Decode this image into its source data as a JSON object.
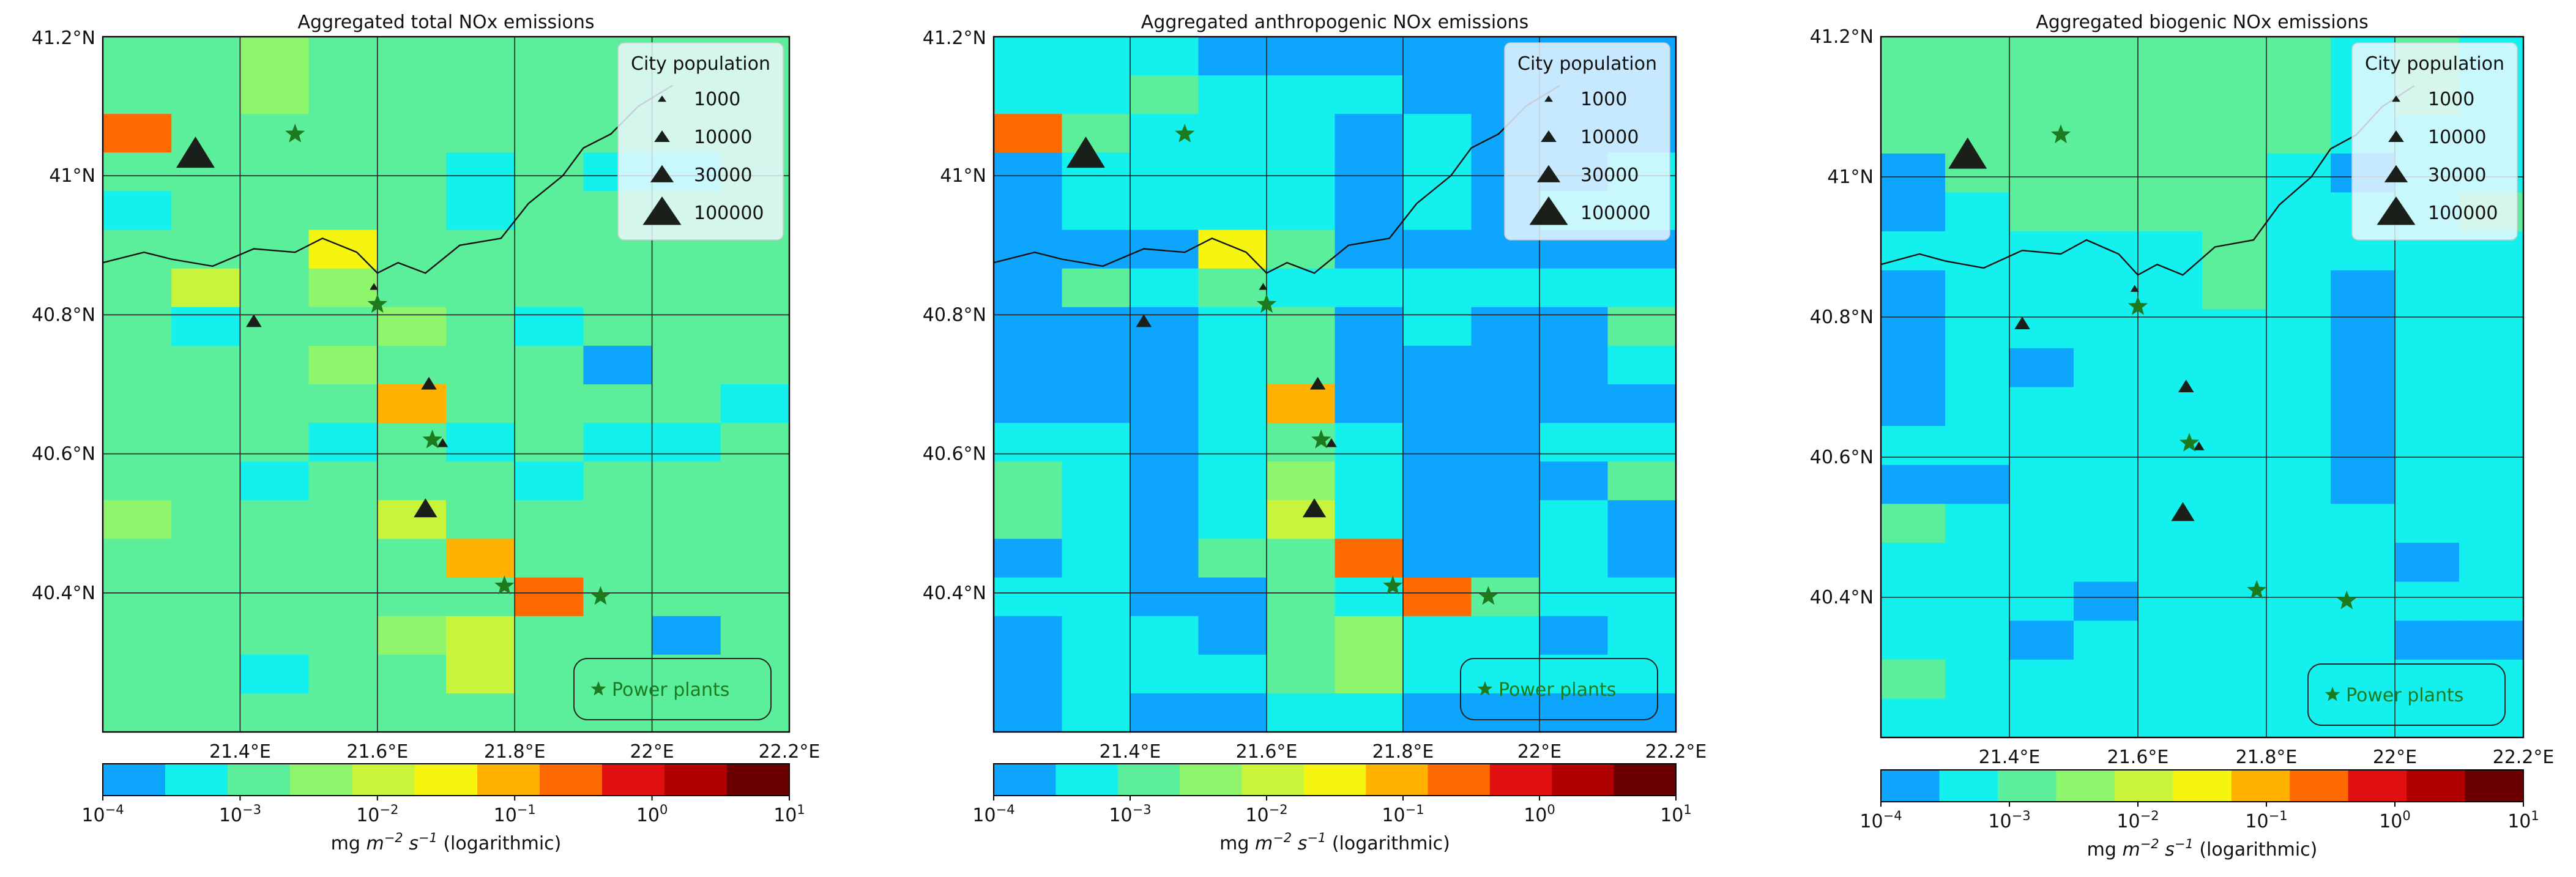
{
  "figure": {
    "colors": {
      "scale": [
        "#0ea5ff",
        "#14f0ee",
        "#5bef9b",
        "#8ff56d",
        "#c8f53c",
        "#f5f50f",
        "#ffb300",
        "#ff6a00",
        "#e01010",
        "#b00000",
        "#6b0000"
      ],
      "star": "#1e7a1e",
      "city": "#1a1f1a",
      "grid": "#222222",
      "coast": "#111111",
      "legend_bg": "#f0f8ff"
    },
    "longitude_ticks": [
      "21.4°E",
      "21.6°E",
      "21.8°E",
      "22°E",
      "22.2°E"
    ],
    "latitude_ticks": [
      "41.2°N",
      "41°N",
      "40.8°N",
      "40.6°N",
      "40.4°N"
    ],
    "colorbar_ticks": [
      {
        "base": "10",
        "exp": "−4"
      },
      {
        "base": "10",
        "exp": "−3"
      },
      {
        "base": "10",
        "exp": "−2"
      },
      {
        "base": "10",
        "exp": "−1"
      },
      {
        "base": "10",
        "exp": "0"
      },
      {
        "base": "10",
        "exp": "1"
      }
    ],
    "colorbar_label": {
      "pre": "mg ",
      "m": "m",
      "m_exp": "−2",
      "s": " s",
      "s_exp": "−1",
      "post": " (logarithmic)"
    },
    "city_legend": {
      "title": "City population",
      "entries": [
        {
          "label": "1000",
          "pop": 1000
        },
        {
          "label": "10000",
          "pop": 10000
        },
        {
          "label": "30000",
          "pop": 30000
        },
        {
          "label": "100000",
          "pop": 100000
        }
      ]
    },
    "power_plant_legend": "Power plants",
    "cities": [
      {
        "lon": 21.335,
        "lat": 41.03,
        "pop": 100000
      },
      {
        "lon": 21.42,
        "lat": 40.79,
        "pop": 10000
      },
      {
        "lon": 21.595,
        "lat": 40.84,
        "pop": 1000
      },
      {
        "lon": 21.675,
        "lat": 40.7,
        "pop": 10000
      },
      {
        "lon": 21.695,
        "lat": 40.615,
        "pop": 3000
      },
      {
        "lon": 21.67,
        "lat": 40.52,
        "pop": 30000
      }
    ],
    "power_plants": [
      {
        "lon": 21.48,
        "lat": 41.06
      },
      {
        "lon": 21.6,
        "lat": 40.815
      },
      {
        "lon": 21.68,
        "lat": 40.62
      },
      {
        "lon": 21.785,
        "lat": 40.41
      },
      {
        "lon": 21.925,
        "lat": 40.395
      }
    ],
    "coastline": [
      [
        21.2,
        40.875
      ],
      [
        21.26,
        40.89
      ],
      [
        21.3,
        40.88
      ],
      [
        21.36,
        40.87
      ],
      [
        21.42,
        40.895
      ],
      [
        21.48,
        40.89
      ],
      [
        21.52,
        40.91
      ],
      [
        21.57,
        40.89
      ],
      [
        21.6,
        40.86
      ],
      [
        21.63,
        40.875
      ],
      [
        21.67,
        40.86
      ],
      [
        21.72,
        40.9
      ],
      [
        21.78,
        40.91
      ],
      [
        21.82,
        40.96
      ],
      [
        21.87,
        41.0
      ],
      [
        21.9,
        41.04
      ],
      [
        21.94,
        41.06
      ],
      [
        21.98,
        41.1
      ],
      [
        22.03,
        41.13
      ]
    ]
  },
  "panels": [
    {
      "title": "Aggregated total NOx emissions",
      "grid": [
        [
          2,
          2,
          3,
          2,
          2,
          2,
          2,
          2,
          2,
          2
        ],
        [
          2,
          2,
          3,
          2,
          2,
          2,
          2,
          2,
          2,
          2
        ],
        [
          7,
          2,
          2,
          2,
          2,
          2,
          2,
          2,
          2,
          2
        ],
        [
          2,
          2,
          2,
          2,
          2,
          1,
          2,
          1,
          1,
          2
        ],
        [
          1,
          2,
          2,
          2,
          2,
          1,
          2,
          2,
          2,
          2
        ],
        [
          2,
          2,
          2,
          5,
          2,
          2,
          2,
          2,
          2,
          2
        ],
        [
          2,
          4,
          2,
          3,
          2,
          2,
          2,
          2,
          2,
          2
        ],
        [
          2,
          1,
          2,
          2,
          3,
          2,
          1,
          2,
          2,
          2
        ],
        [
          2,
          2,
          2,
          3,
          2,
          2,
          2,
          0,
          2,
          2
        ],
        [
          2,
          2,
          2,
          2,
          6,
          2,
          2,
          2,
          2,
          1
        ],
        [
          2,
          2,
          2,
          1,
          2,
          1,
          2,
          1,
          1,
          2
        ],
        [
          2,
          2,
          1,
          2,
          2,
          2,
          1,
          2,
          2,
          2
        ],
        [
          3,
          2,
          2,
          2,
          4,
          2,
          2,
          2,
          2,
          2
        ],
        [
          2,
          2,
          2,
          2,
          2,
          6,
          2,
          2,
          2,
          2
        ],
        [
          2,
          2,
          2,
          2,
          2,
          2,
          7,
          2,
          2,
          2
        ],
        [
          2,
          2,
          2,
          2,
          3,
          4,
          2,
          2,
          0,
          2
        ],
        [
          2,
          2,
          1,
          2,
          2,
          4,
          2,
          2,
          2,
          2
        ],
        [
          2,
          2,
          2,
          2,
          2,
          2,
          2,
          2,
          2,
          2
        ]
      ]
    },
    {
      "title": "Aggregated anthropogenic NOx emissions",
      "grid": [
        [
          1,
          1,
          1,
          0,
          0,
          0,
          0,
          0,
          0,
          0
        ],
        [
          1,
          1,
          2,
          1,
          1,
          1,
          0,
          0,
          0,
          0
        ],
        [
          7,
          2,
          1,
          1,
          1,
          0,
          1,
          0,
          0,
          0
        ],
        [
          0,
          1,
          1,
          1,
          1,
          0,
          1,
          0,
          0,
          1
        ],
        [
          0,
          1,
          1,
          1,
          1,
          0,
          1,
          0,
          1,
          1
        ],
        [
          0,
          0,
          0,
          5,
          2,
          0,
          0,
          0,
          0,
          0
        ],
        [
          0,
          2,
          1,
          2,
          1,
          1,
          1,
          1,
          1,
          1
        ],
        [
          0,
          0,
          0,
          1,
          2,
          0,
          1,
          0,
          0,
          2
        ],
        [
          0,
          0,
          0,
          1,
          2,
          0,
          0,
          0,
          0,
          1
        ],
        [
          0,
          0,
          0,
          1,
          6,
          0,
          0,
          0,
          0,
          0
        ],
        [
          1,
          1,
          0,
          1,
          2,
          1,
          0,
          0,
          1,
          1
        ],
        [
          2,
          1,
          0,
          1,
          3,
          1,
          0,
          0,
          0,
          2
        ],
        [
          2,
          1,
          0,
          1,
          4,
          1,
          0,
          0,
          1,
          0
        ],
        [
          0,
          1,
          0,
          2,
          2,
          7,
          0,
          0,
          1,
          0
        ],
        [
          1,
          1,
          0,
          0,
          2,
          1,
          7,
          2,
          1,
          1
        ],
        [
          0,
          1,
          1,
          0,
          2,
          3,
          1,
          1,
          0,
          1
        ],
        [
          0,
          1,
          1,
          1,
          2,
          3,
          1,
          1,
          1,
          1
        ],
        [
          0,
          1,
          0,
          0,
          1,
          1,
          0,
          0,
          0,
          0
        ]
      ]
    },
    {
      "title": "Aggregated biogenic NOx emissions",
      "grid": [
        [
          2,
          2,
          2,
          2,
          2,
          2,
          2,
          1,
          2,
          1
        ],
        [
          2,
          2,
          2,
          2,
          2,
          2,
          2,
          1,
          2,
          1
        ],
        [
          2,
          2,
          2,
          2,
          2,
          2,
          2,
          1,
          1,
          1
        ],
        [
          0,
          2,
          2,
          2,
          2,
          2,
          1,
          0,
          1,
          1
        ],
        [
          0,
          1,
          2,
          2,
          2,
          2,
          1,
          1,
          1,
          2
        ],
        [
          1,
          1,
          1,
          1,
          1,
          2,
          1,
          1,
          1,
          1
        ],
        [
          0,
          1,
          1,
          1,
          1,
          2,
          1,
          0,
          1,
          1
        ],
        [
          0,
          1,
          1,
          1,
          1,
          1,
          1,
          0,
          1,
          1
        ],
        [
          0,
          1,
          0,
          1,
          1,
          1,
          1,
          0,
          1,
          1
        ],
        [
          0,
          1,
          1,
          1,
          1,
          1,
          1,
          0,
          1,
          1
        ],
        [
          1,
          1,
          1,
          1,
          1,
          1,
          1,
          0,
          1,
          1
        ],
        [
          0,
          0,
          1,
          1,
          1,
          1,
          1,
          0,
          1,
          1
        ],
        [
          2,
          1,
          1,
          1,
          1,
          1,
          1,
          1,
          1,
          1
        ],
        [
          1,
          1,
          1,
          1,
          1,
          1,
          1,
          1,
          0,
          1
        ],
        [
          1,
          1,
          1,
          0,
          1,
          1,
          1,
          1,
          1,
          1
        ],
        [
          1,
          1,
          0,
          1,
          1,
          1,
          1,
          1,
          0,
          0
        ],
        [
          2,
          1,
          1,
          1,
          1,
          1,
          1,
          1,
          1,
          1
        ],
        [
          1,
          1,
          1,
          1,
          1,
          1,
          1,
          1,
          1,
          1
        ]
      ]
    }
  ]
}
